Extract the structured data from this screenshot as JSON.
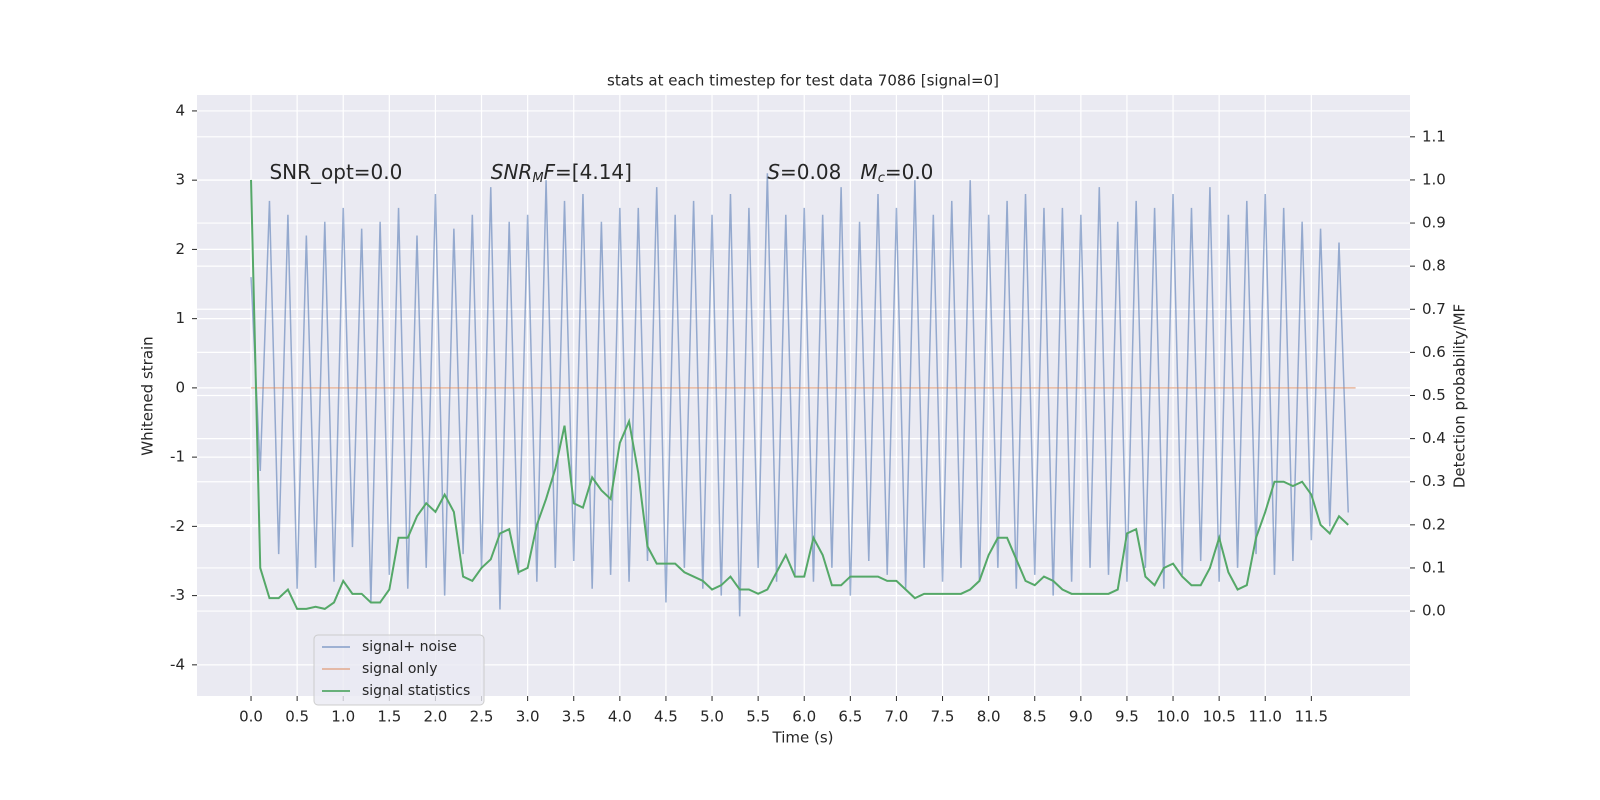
{
  "chart_data": {
    "type": "line",
    "title": "stats at each timestep for test data 7086 [signal=0]",
    "xlabel": "Time (s)",
    "ylabel": "Whitened strain",
    "y2label": "Detection probability/MF",
    "xlim": [
      -0.586,
      12.57
    ],
    "ylim": [
      -4.45,
      4.23
    ],
    "y2lim": [
      -0.197,
      1.197
    ],
    "xticks": [
      {
        "value": 0,
        "label": "0.0"
      },
      0.5,
      {
        "value": 1,
        "label": "1.0"
      },
      1.5,
      {
        "value": 2,
        "label": "2.0"
      },
      2.5,
      {
        "value": 3,
        "label": "3.0"
      },
      3.5,
      {
        "value": 4,
        "label": "4.0"
      },
      4.5,
      {
        "value": 5,
        "label": "5.0"
      },
      5.5,
      {
        "value": 6,
        "label": "6.0"
      },
      6.5,
      {
        "value": 7,
        "label": "7.0"
      },
      7.5,
      {
        "value": 8,
        "label": "8.0"
      },
      8.5,
      {
        "value": 9,
        "label": "9.0"
      },
      9.5,
      {
        "value": 10,
        "label": "10.0"
      },
      10.5,
      {
        "value": 11,
        "label": "11.0"
      },
      11.5
    ],
    "yticks": [
      -4,
      -3,
      -2,
      -1,
      0,
      1,
      2,
      3,
      4
    ],
    "y2ticks": [
      {
        "value": 0,
        "label": "0.0"
      },
      0.1,
      0.2,
      0.3,
      0.4,
      0.5,
      0.6,
      0.7,
      0.8,
      0.9,
      {
        "value": 1,
        "label": "1.0"
      },
      1.1
    ],
    "grid": true,
    "legend": "lower left",
    "x": [
      0,
      0.1,
      0.2,
      0.3,
      0.4,
      0.5,
      0.6,
      0.7,
      0.8,
      0.9,
      1,
      1.1,
      1.2,
      1.3,
      1.4,
      1.5,
      1.6,
      1.7,
      1.8,
      1.9,
      2,
      2.1,
      2.2,
      2.3,
      2.4,
      2.5,
      2.6,
      2.7,
      2.8,
      2.9,
      3,
      3.1,
      3.2,
      3.3,
      3.4,
      3.5,
      3.6,
      3.7,
      3.8,
      3.9,
      4,
      4.1,
      4.2,
      4.3,
      4.4,
      4.5,
      4.6,
      4.7,
      4.8,
      4.9,
      5,
      5.1,
      5.2,
      5.3,
      5.4,
      5.5,
      5.6,
      5.7,
      5.8,
      5.9,
      6,
      6.1,
      6.2,
      6.3,
      6.4,
      6.5,
      6.6,
      6.7,
      6.8,
      6.9,
      7,
      7.1,
      7.2,
      7.3,
      7.4,
      7.5,
      7.6,
      7.7,
      7.8,
      7.9,
      8,
      8.1,
      8.2,
      8.3,
      8.4,
      8.5,
      8.6,
      8.7,
      8.8,
      8.9,
      9,
      9.1,
      9.2,
      9.3,
      9.4,
      9.5,
      9.6,
      9.7,
      9.8,
      9.9,
      10,
      10.1,
      10.2,
      10.3,
      10.4,
      10.5,
      10.6,
      10.7,
      10.8,
      10.9,
      11,
      11.1,
      11.2,
      11.3,
      11.4,
      11.5,
      11.6,
      11.7,
      11.8,
      11.9
    ],
    "series": [
      {
        "name": "signal+ noise",
        "color": "#4c72b0",
        "values": [
          1.6,
          -1.2,
          2.7,
          -2.4,
          2.5,
          -2.9,
          2.2,
          -2.6,
          2.4,
          -2.8,
          2.6,
          -2.3,
          2.3,
          -3.1,
          2.4,
          -2.7,
          2.6,
          -2.9,
          2.2,
          -2.6,
          2.8,
          -3.0,
          2.3,
          -2.4,
          2.5,
          -2.6,
          2.9,
          -3.2,
          2.4,
          -2.7,
          2.5,
          -2.8,
          3.0,
          -2.6,
          2.7,
          -2.5,
          2.8,
          -2.9,
          2.4,
          -2.7,
          2.6,
          -2.8,
          2.6,
          -2.5,
          2.9,
          -3.1,
          2.5,
          -2.6,
          2.7,
          -2.9,
          2.5,
          -3.0,
          2.8,
          -3.3,
          2.6,
          -2.6,
          3.1,
          -2.8,
          2.5,
          -2.7,
          2.6,
          -2.8,
          2.5,
          -2.6,
          2.9,
          -3.0,
          2.4,
          -2.5,
          2.8,
          -2.7,
          2.6,
          -2.9,
          3.0,
          -2.6,
          2.5,
          -2.8,
          2.7,
          -2.6,
          3.0,
          -2.8,
          2.5,
          -2.6,
          2.7,
          -2.9,
          2.8,
          -2.7,
          2.6,
          -3.0,
          2.6,
          -2.8,
          2.5,
          -2.6,
          2.9,
          -2.7,
          2.4,
          -2.8,
          2.7,
          -2.6,
          2.6,
          -2.9,
          2.8,
          -2.7,
          2.6,
          -2.5,
          2.9,
          -2.8,
          2.5,
          -2.6,
          2.7,
          -2.4,
          2.8,
          -2.7,
          2.6,
          -2.5,
          2.4,
          -2.2,
          2.3,
          -2.0,
          2.1,
          -1.8
        ]
      },
      {
        "name": "signal only",
        "color": "#dd8452",
        "x": [
          0,
          11.98
        ],
        "values": [
          0,
          0
        ]
      },
      {
        "name": "signal statistics",
        "color": "#55a868",
        "axis": "y2",
        "values": [
          1.0,
          0.1,
          0.03,
          0.03,
          0.05,
          0.005,
          0.005,
          0.01,
          0.005,
          0.02,
          0.07,
          0.04,
          0.04,
          0.02,
          0.02,
          0.05,
          0.17,
          0.17,
          0.22,
          0.25,
          0.23,
          0.27,
          0.23,
          0.08,
          0.07,
          0.1,
          0.12,
          0.18,
          0.19,
          0.09,
          0.1,
          0.2,
          0.26,
          0.33,
          0.43,
          0.25,
          0.24,
          0.31,
          0.28,
          0.26,
          0.39,
          0.44,
          0.32,
          0.15,
          0.11,
          0.11,
          0.11,
          0.09,
          0.08,
          0.07,
          0.05,
          0.06,
          0.08,
          0.05,
          0.05,
          0.04,
          0.05,
          0.09,
          0.13,
          0.08,
          0.08,
          0.17,
          0.13,
          0.06,
          0.06,
          0.08,
          0.08,
          0.08,
          0.08,
          0.07,
          0.07,
          0.05,
          0.03,
          0.04,
          0.04,
          0.04,
          0.04,
          0.04,
          0.05,
          0.07,
          0.13,
          0.17,
          0.17,
          0.12,
          0.07,
          0.06,
          0.08,
          0.07,
          0.05,
          0.04,
          0.04,
          0.04,
          0.04,
          0.04,
          0.05,
          0.18,
          0.19,
          0.08,
          0.06,
          0.1,
          0.11,
          0.08,
          0.06,
          0.06,
          0.1,
          0.17,
          0.09,
          0.05,
          0.06,
          0.17,
          0.23,
          0.3,
          0.3,
          0.29,
          0.3,
          0.27,
          0.2,
          0.18,
          0.22,
          0.2
        ]
      }
    ],
    "annotations": [
      {
        "x": 0.2,
        "y": 3.1,
        "parts": [
          {
            "text": "SNR_opt=0.0",
            "kind": "plain"
          }
        ]
      },
      {
        "x": 2.6,
        "y": 3.1,
        "parts": [
          {
            "text": "SNR",
            "kind": "italic"
          },
          {
            "text": "M",
            "kind": "sub"
          },
          {
            "text": "F",
            "kind": "italic"
          },
          {
            "text": "=[4.14]",
            "kind": "plain"
          }
        ]
      },
      {
        "x": 5.6,
        "y": 3.1,
        "parts": [
          {
            "text": "S",
            "kind": "italic"
          },
          {
            "text": "=0.08   ",
            "kind": "plain"
          },
          {
            "text": "M",
            "kind": "italic"
          },
          {
            "text": "c",
            "kind": "sub"
          },
          {
            "text": "=0.0",
            "kind": "plain"
          }
        ]
      }
    ]
  }
}
